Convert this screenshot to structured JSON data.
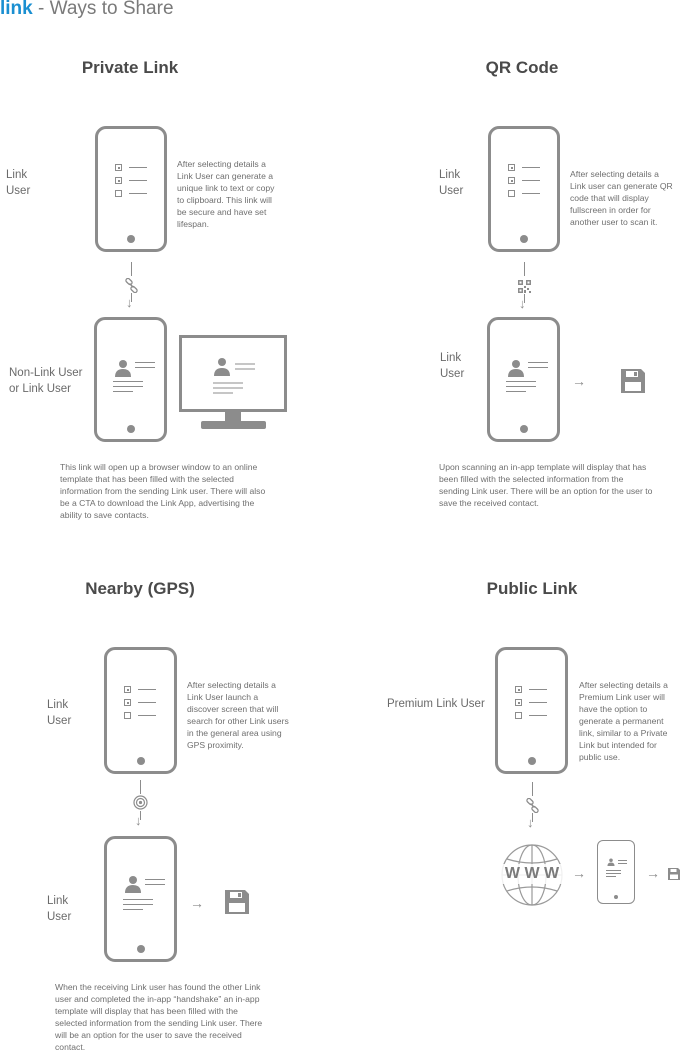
{
  "header": {
    "brand": "link",
    "title": " - Ways to Share"
  },
  "icons": {
    "checklist": "checklist-icon",
    "contact_card": "contact-card-icon",
    "chain_link": "chain-link-icon",
    "qr_code": "qr-code-icon",
    "gps_signal": "gps-signal-icon",
    "floppy_save": "floppy-save-icon",
    "globe_www": "globe-www-icon",
    "monitor": "desktop-monitor-icon"
  },
  "colors": {
    "brand": "#1a8fd1",
    "icon_gray": "#8c8c8c",
    "title_gray": "#4a4a4a"
  },
  "private": {
    "title": "Private Link",
    "sender_label": "Link\nUser",
    "sender_desc": "After selecting details a Link User can generate a unique link to text or copy to clipboard. This link will be secure and have set lifespan.",
    "receiver_label": "Non-Link User\nor Link User",
    "footer": "This link will open up a browser window to an online template that has been filled with the selected information from the sending Link user. There will also be a CTA to download the Link App, advertising the ability to save contacts."
  },
  "qr": {
    "title": "QR Code",
    "sender_label": "Link\nUser",
    "sender_desc": "After selecting details a Link user can generate QR code that will display fullscreen in order for another user to scan it.",
    "receiver_label": "Link\nUser",
    "footer": "Upon scanning an in-app template will display that has been filled with the selected information from the sending Link user. There will be an option for the user to save the received contact."
  },
  "nearby": {
    "title": "Nearby (GPS)",
    "sender_label": "Link\nUser",
    "sender_desc": "After selecting details a Link User launch a discover screen that will search for other Link users in the general area using GPS proximity.",
    "receiver_label": "Link\nUser",
    "footer": "When the receiving Link user has found the other Link user and completed the in-app “handshake” an in-app template will display that has been filled with the selected information from the sending Link user. There will be an option for the user to save the received contact."
  },
  "public": {
    "title": "Public Link",
    "sender_label": "Premium Link User",
    "sender_desc": "After selecting details a Premium Link user will have the option to generate a permanent link, similar to a Private Link but intended for public use.",
    "globe_text": "W W W"
  }
}
